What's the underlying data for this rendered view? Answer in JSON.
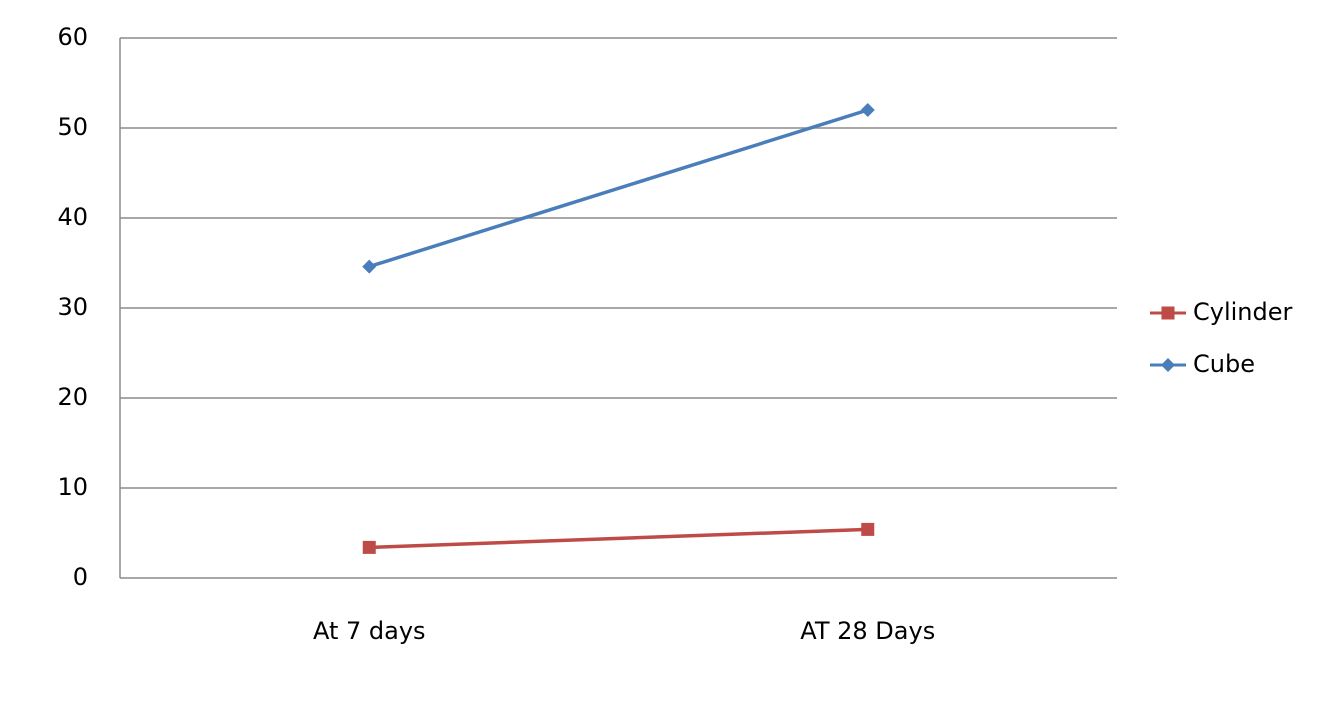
{
  "chart_data": {
    "type": "line",
    "categories": [
      "At 7 days",
      "AT 28 Days"
    ],
    "series": [
      {
        "name": "Cylinder",
        "color": "#be4b48",
        "marker": "square",
        "values": [
          3.4,
          5.4
        ]
      },
      {
        "name": "Cube",
        "color": "#4a7ebb",
        "marker": "diamond",
        "values": [
          34.6,
          52
        ]
      }
    ],
    "ylim": [
      0,
      60
    ],
    "yticks": [
      0,
      10,
      20,
      30,
      40,
      50,
      60
    ],
    "grid": true,
    "legend": "right"
  }
}
